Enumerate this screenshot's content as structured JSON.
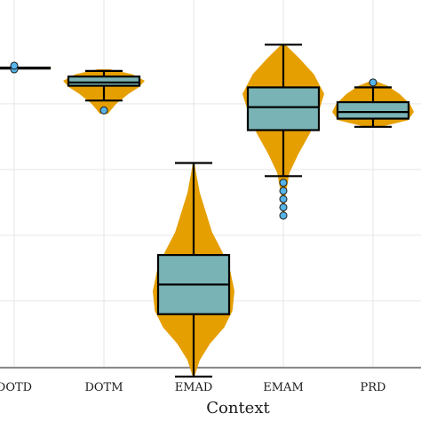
{
  "chart_data": {
    "type": "violin-box",
    "xlabel": "Context",
    "ylabel": "",
    "categories": [
      "DOTD",
      "DOTM",
      "EMAD",
      "EMAM",
      "PRD"
    ],
    "ylim": [
      0,
      100
    ],
    "y_gridlines": [
      3,
      23,
      43,
      63,
      83
    ],
    "grid": true,
    "colors": {
      "violin": "#E69F00",
      "box": "#7AB3B5",
      "outlier": "#56B4E9",
      "line": "#000000"
    },
    "groups": [
      {
        "name": "DOTD",
        "whisker_low": 94,
        "q1": 94,
        "median": 94,
        "q3": 94,
        "whisker_high": 94,
        "outliers": [
          93.5,
          94.6
        ],
        "violin": [
          [
            93.8,
            0.1
          ],
          [
            94,
            1.0
          ],
          [
            94.2,
            0.1
          ]
        ]
      },
      {
        "name": "DOTM",
        "whisker_low": 84,
        "q1": 88.5,
        "median": 89.5,
        "q3": 91.3,
        "whisker_high": 93,
        "outliers": [
          81
        ],
        "violin": [
          [
            80,
            0.1
          ],
          [
            83,
            0.3
          ],
          [
            86,
            0.6
          ],
          [
            88,
            0.85
          ],
          [
            90,
            1.0
          ],
          [
            92,
            0.7
          ],
          [
            93.5,
            0.15
          ]
        ]
      },
      {
        "name": "EMAD",
        "whisker_low": 0,
        "q1": 19,
        "median": 28,
        "q3": 37,
        "whisker_high": 65,
        "outliers": [],
        "violin": [
          [
            0,
            0.02
          ],
          [
            5,
            0.15
          ],
          [
            10,
            0.4
          ],
          [
            15,
            0.75
          ],
          [
            20,
            0.95
          ],
          [
            26,
            1.0
          ],
          [
            32,
            0.9
          ],
          [
            38,
            0.7
          ],
          [
            44,
            0.45
          ],
          [
            50,
            0.3
          ],
          [
            56,
            0.15
          ],
          [
            62,
            0.06
          ],
          [
            65,
            0.02
          ]
        ]
      },
      {
        "name": "EMAM",
        "whisker_low": 61,
        "q1": 75,
        "median": 82,
        "q3": 88,
        "whisker_high": 101,
        "outliers": [
          49,
          51.5,
          54,
          56.5,
          59
        ],
        "violin": [
          [
            48,
            0.02
          ],
          [
            55,
            0.05
          ],
          [
            62,
            0.15
          ],
          [
            68,
            0.38
          ],
          [
            74,
            0.65
          ],
          [
            80,
            0.85
          ],
          [
            86,
            1.0
          ],
          [
            92,
            0.75
          ],
          [
            97,
            0.38
          ],
          [
            101,
            0.05
          ]
        ]
      },
      {
        "name": "PRD",
        "whisker_low": 76,
        "q1": 78.5,
        "median": 80.5,
        "q3": 83.5,
        "whisker_high": 88,
        "outliers": [
          89.5
        ],
        "violin": [
          [
            76,
            0.2
          ],
          [
            78,
            0.85
          ],
          [
            80.5,
            1.0
          ],
          [
            83,
            0.9
          ],
          [
            86,
            0.65
          ],
          [
            88.5,
            0.35
          ],
          [
            90,
            0.05
          ]
        ]
      }
    ]
  }
}
